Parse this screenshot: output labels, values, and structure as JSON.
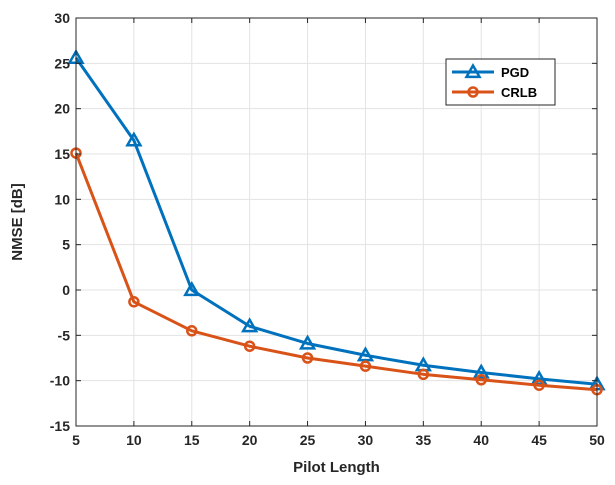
{
  "chart_data": {
    "type": "line",
    "title": "",
    "xlabel": "Pilot Length",
    "ylabel": "NMSE [dB]",
    "xlim": [
      5,
      50
    ],
    "ylim": [
      -15,
      30
    ],
    "xticks": [
      5,
      10,
      15,
      20,
      25,
      30,
      35,
      40,
      45,
      50
    ],
    "yticks": [
      -15,
      -10,
      -5,
      0,
      5,
      10,
      15,
      20,
      25,
      30
    ],
    "grid": true,
    "legend_position": "top-right",
    "x": [
      5,
      10,
      15,
      20,
      25,
      30,
      35,
      40,
      45,
      50
    ],
    "series": [
      {
        "name": "PGD",
        "color": "#0072BD",
        "marker": "triangle",
        "values": [
          25.6,
          16.5,
          0.0,
          -4.0,
          -5.9,
          -7.2,
          -8.3,
          -9.1,
          -9.8,
          -10.4
        ]
      },
      {
        "name": "CRLB",
        "color": "#D95319",
        "marker": "circle",
        "values": [
          15.1,
          -1.3,
          -4.5,
          -6.2,
          -7.5,
          -8.4,
          -9.3,
          -9.9,
          -10.5,
          -11.0
        ]
      }
    ]
  }
}
